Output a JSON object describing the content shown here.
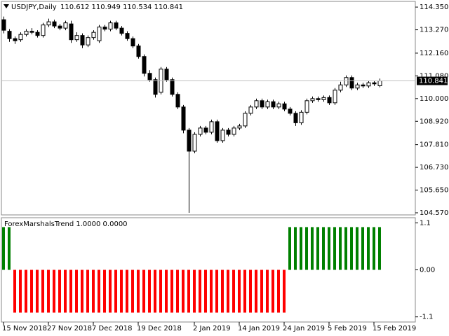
{
  "chart_data": [
    {
      "type": "candlestick",
      "title": "USDJPY,Daily",
      "subtitle": "110.612 110.949 110.534 110.841",
      "categories": [
        "15 Nov 2018",
        null,
        null,
        null,
        null,
        null,
        null,
        null,
        "27 Nov 2018",
        null,
        null,
        null,
        null,
        null,
        null,
        null,
        "7 Dec 2018",
        null,
        null,
        null,
        null,
        null,
        null,
        null,
        "19 Dec 2018",
        null,
        null,
        null,
        null,
        null,
        null,
        null,
        null,
        null,
        "2 Jan 2019",
        null,
        null,
        null,
        null,
        null,
        null,
        null,
        "14 Jan 2019",
        null,
        null,
        null,
        null,
        null,
        null,
        null,
        "24 Jan 2019",
        null,
        null,
        null,
        null,
        null,
        null,
        null,
        "5 Feb 2019",
        null,
        null,
        null,
        null,
        null,
        null,
        null,
        "15 Feb 2019",
        null
      ],
      "open": [
        113.75,
        113.2,
        112.85,
        112.8,
        113.05,
        113.2,
        113.15,
        113.0,
        113.5,
        113.65,
        113.45,
        113.35,
        113.55,
        112.8,
        113.0,
        112.55,
        112.9,
        112.75,
        113.4,
        113.3,
        113.6,
        113.35,
        113.1,
        112.85,
        112.5,
        112.0,
        111.2,
        110.9,
        110.3,
        111.4,
        110.9,
        110.2,
        109.6,
        108.5,
        107.5,
        108.3,
        108.6,
        108.4,
        108.9,
        108.0,
        108.5,
        108.3,
        108.6,
        108.7,
        109.3,
        109.6,
        109.9,
        109.6,
        109.85,
        109.6,
        109.75,
        109.5,
        109.3,
        108.85,
        109.35,
        109.9,
        110.0,
        109.95,
        110.05,
        109.8,
        110.4,
        110.65,
        111.0,
        110.5,
        110.65,
        110.6,
        110.75,
        110.612
      ],
      "high": [
        113.9,
        113.3,
        112.95,
        113.15,
        113.3,
        113.35,
        113.25,
        113.6,
        113.8,
        113.75,
        113.55,
        113.7,
        113.7,
        113.15,
        113.1,
        113.0,
        113.25,
        113.5,
        113.5,
        113.7,
        113.7,
        113.45,
        113.2,
        112.95,
        112.6,
        112.1,
        111.35,
        111.0,
        111.5,
        111.5,
        111.0,
        110.3,
        109.7,
        108.6,
        108.4,
        108.7,
        108.7,
        109.0,
        109.0,
        108.6,
        108.6,
        108.7,
        108.8,
        109.4,
        109.7,
        110.0,
        110.0,
        109.95,
        109.95,
        109.85,
        109.85,
        109.6,
        109.4,
        109.45,
        110.0,
        110.1,
        110.1,
        110.15,
        110.15,
        110.5,
        110.8,
        111.1,
        111.1,
        110.75,
        110.75,
        110.85,
        110.85,
        110.949
      ],
      "low": [
        113.1,
        112.7,
        112.6,
        112.7,
        112.95,
        113.05,
        112.9,
        112.9,
        113.4,
        113.35,
        113.25,
        113.25,
        112.65,
        112.7,
        112.4,
        112.45,
        112.8,
        112.65,
        113.2,
        113.2,
        113.25,
        113.0,
        112.75,
        112.4,
        111.9,
        111.05,
        110.8,
        110.05,
        110.2,
        110.8,
        110.1,
        109.5,
        108.35,
        104.57,
        107.4,
        108.2,
        108.3,
        108.3,
        107.9,
        107.9,
        108.2,
        108.2,
        108.5,
        108.6,
        109.2,
        109.5,
        109.5,
        109.5,
        109.5,
        109.5,
        109.4,
        109.2,
        108.7,
        108.75,
        109.25,
        109.8,
        109.85,
        109.85,
        109.7,
        109.7,
        110.3,
        110.55,
        110.4,
        110.4,
        110.5,
        110.5,
        110.6,
        110.534
      ],
      "close": [
        113.25,
        112.85,
        112.75,
        113.05,
        113.2,
        113.15,
        113.0,
        113.5,
        113.65,
        113.45,
        113.35,
        113.6,
        112.8,
        113.0,
        112.55,
        112.9,
        113.15,
        113.4,
        113.3,
        113.6,
        113.35,
        113.1,
        112.85,
        112.5,
        112.0,
        111.2,
        110.9,
        110.2,
        111.4,
        110.9,
        110.2,
        109.6,
        108.5,
        107.5,
        108.3,
        108.6,
        108.4,
        108.9,
        108.0,
        108.5,
        108.3,
        108.6,
        108.7,
        109.3,
        109.6,
        109.9,
        109.6,
        109.85,
        109.6,
        109.75,
        109.5,
        109.3,
        108.85,
        109.35,
        109.9,
        110.0,
        109.95,
        110.05,
        109.8,
        110.4,
        110.65,
        111.0,
        110.5,
        110.65,
        110.6,
        110.75,
        110.7,
        110.841
      ],
      "up_color": "#ffffff",
      "down_color": "#000000",
      "price_line": 110.841,
      "ylim": [
        104.47,
        114.62
      ],
      "yticks": [
        {
          "value": 114.35,
          "label": "114.350"
        },
        {
          "value": 113.27,
          "label": "113.270"
        },
        {
          "value": 112.16,
          "label": "112.160"
        },
        {
          "value": 111.08,
          "label": "111.080"
        },
        {
          "value": 110.0,
          "label": "110.000"
        },
        {
          "value": 108.92,
          "label": "108.920"
        },
        {
          "value": 107.81,
          "label": "107.810"
        },
        {
          "value": 106.73,
          "label": "106.730"
        },
        {
          "value": 105.65,
          "label": "105.650"
        },
        {
          "value": 104.57,
          "label": "104.570"
        }
      ],
      "grid": false
    },
    {
      "type": "bar",
      "title": "ForexMarshalsTrend 1.0000 0.0000",
      "series": [
        {
          "color": "#008000",
          "values": [
            1,
            1,
            null,
            null,
            null,
            null,
            null,
            null,
            null,
            null,
            null,
            null,
            null,
            null,
            null,
            null,
            null,
            null,
            null,
            null,
            null,
            null,
            null,
            null,
            null,
            null,
            null,
            null,
            null,
            null,
            null,
            null,
            null,
            null,
            null,
            null,
            null,
            null,
            null,
            null,
            null,
            null,
            null,
            null,
            null,
            null,
            null,
            null,
            null,
            null,
            null,
            1,
            1,
            1,
            1,
            1,
            1,
            1,
            1,
            1,
            1,
            1,
            1,
            1,
            1,
            1,
            1,
            1
          ]
        },
        {
          "color": "#ff0000",
          "values": [
            null,
            null,
            -1,
            -1,
            -1,
            -1,
            -1,
            -1,
            -1,
            -1,
            -1,
            -1,
            -1,
            -1,
            -1,
            -1,
            -1,
            -1,
            -1,
            -1,
            -1,
            -1,
            -1,
            -1,
            -1,
            -1,
            -1,
            -1,
            -1,
            -1,
            -1,
            -1,
            -1,
            -1,
            -1,
            -1,
            -1,
            -1,
            -1,
            -1,
            -1,
            -1,
            -1,
            -1,
            -1,
            -1,
            -1,
            -1,
            -1,
            -1,
            -1,
            null,
            null,
            null,
            null,
            null,
            null,
            null,
            null,
            null,
            null,
            null,
            null,
            null,
            null,
            null,
            null,
            null
          ]
        }
      ],
      "ylim": [
        -1.22,
        1.22
      ],
      "yticks": [
        1.1,
        {
          "value": 0,
          "label": "0.00"
        },
        -1.1
      ]
    }
  ]
}
